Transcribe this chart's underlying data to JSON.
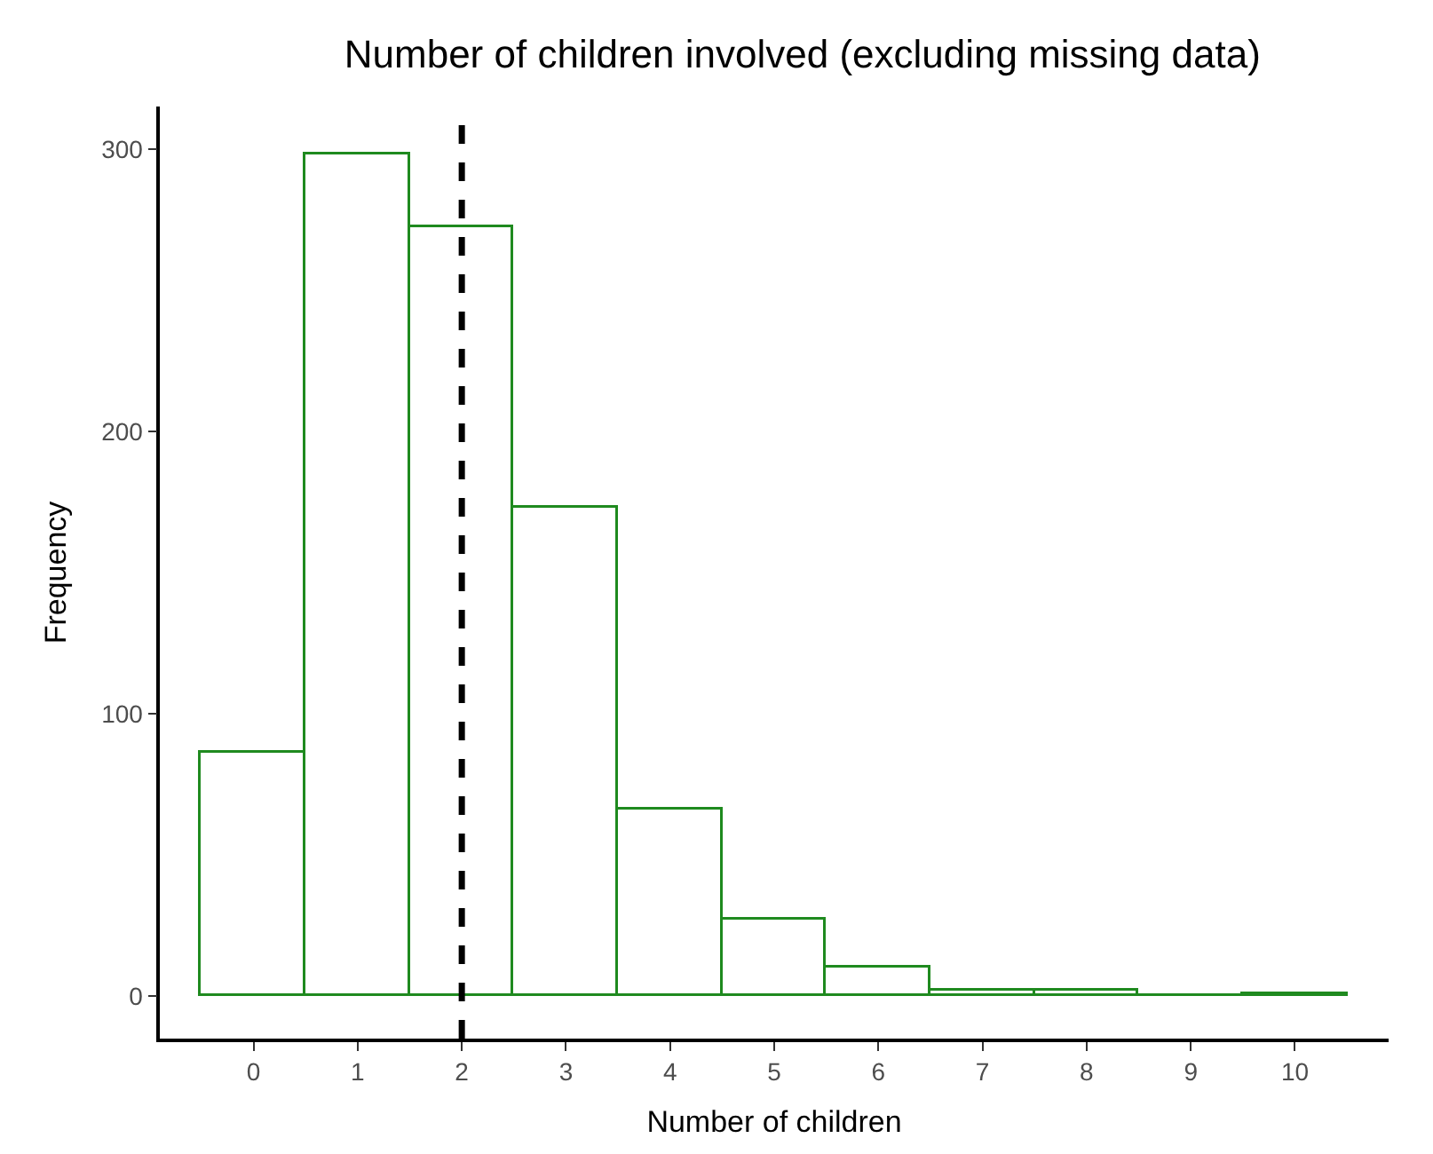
{
  "chart_data": {
    "type": "histogram",
    "title": "Number of children involved (excluding missing data)",
    "xlabel": "Number of children",
    "ylabel": "Frequency",
    "bins": [
      -0.5,
      0.5,
      1.5,
      2.5,
      3.5,
      4.5,
      5.5,
      6.5,
      7.5,
      8.5,
      9.5,
      10.5
    ],
    "values": [
      86,
      298,
      272,
      173,
      66,
      27,
      10,
      2,
      2,
      0,
      1
    ],
    "color": "#1f8a1f",
    "xlim": [
      -0.9,
      10.9
    ],
    "xticks": [
      0,
      1,
      2,
      3,
      4,
      5,
      6,
      7,
      8,
      9,
      10
    ],
    "ylim": [
      -15,
      315
    ],
    "yticks": [
      0,
      100,
      200,
      300
    ],
    "ref_lines": [
      {
        "axis": "x",
        "value": 2,
        "color": "#000000",
        "line_style": "dashed"
      }
    ]
  }
}
